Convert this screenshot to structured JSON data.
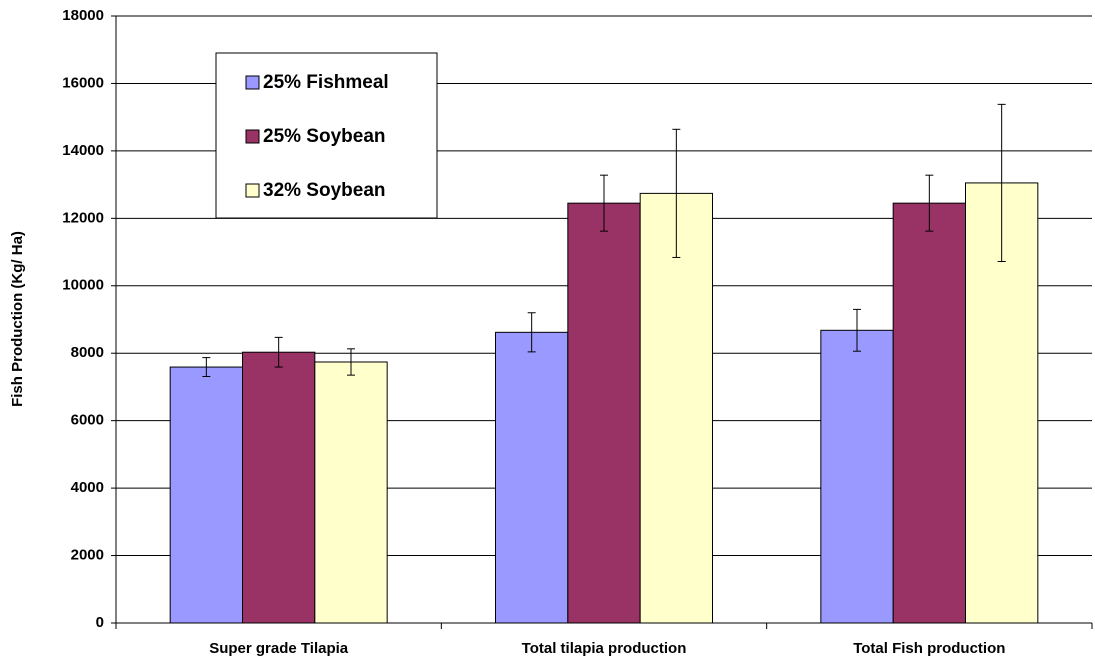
{
  "chart_data": {
    "type": "bar",
    "y_label": "Fish Production (Kg/ Ha)",
    "categories": [
      "Super grade Tilapia",
      "Total tilapia production",
      "Total Fish production"
    ],
    "series": [
      {
        "name": "25% Fishmeal",
        "color": "#9999ff",
        "values": [
          7590,
          8620,
          8680
        ],
        "errors": [
          280,
          580,
          620
        ]
      },
      {
        "name": "25% Soybean",
        "color": "#993366",
        "values": [
          8030,
          12450,
          12450
        ],
        "errors": [
          440,
          830,
          830
        ]
      },
      {
        "name": "32% Soybean",
        "color": "#ffffcc",
        "values": [
          7740,
          12740,
          13050
        ],
        "errors": [
          390,
          1900,
          2330
        ]
      }
    ],
    "ylim": [
      0,
      18000
    ],
    "yticks": [
      0,
      2000,
      4000,
      6000,
      8000,
      10000,
      12000,
      14000,
      16000,
      18000
    ],
    "grid": true
  }
}
